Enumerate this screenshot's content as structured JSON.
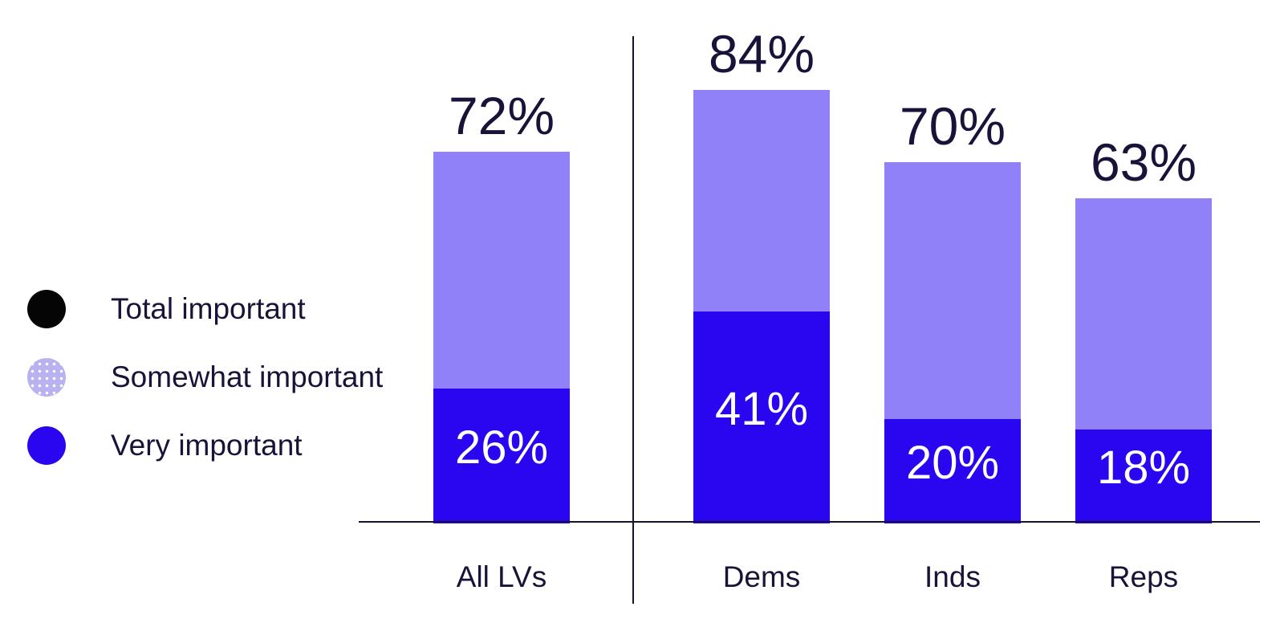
{
  "legend": {
    "items": [
      {
        "label": "Total important",
        "color": "#050505",
        "pattern": "solid"
      },
      {
        "label": "Somewhat important",
        "color": "#b9b2f1",
        "pattern": "dotted"
      },
      {
        "label": "Very important",
        "color": "#2a06f0",
        "pattern": "solid"
      }
    ]
  },
  "chart_data": {
    "type": "bar",
    "stacked": true,
    "unit": "%",
    "title": "",
    "xlabel": "",
    "ylabel": "",
    "categories": [
      "All LVs",
      "Dems",
      "Inds",
      "Reps"
    ],
    "series": [
      {
        "name": "Total important",
        "values": [
          72,
          84,
          70,
          63
        ],
        "labels": [
          "72%",
          "84%",
          "70%",
          "63%"
        ],
        "label_position": "above-bar"
      },
      {
        "name": "Very important",
        "values": [
          26,
          41,
          20,
          18
        ],
        "labels": [
          "26%",
          "41%",
          "20%",
          "18%"
        ],
        "label_position": "inside-bottom-segment"
      }
    ],
    "colors": {
      "somewhat_segment": "#9181f8",
      "very_segment": "#2a06f0",
      "label_above": "#1a1238",
      "label_inside": "#ffffff",
      "axis": "#17132b"
    },
    "ylim": [
      0,
      100
    ],
    "grid": false,
    "axis_baseline": true,
    "divider_between": [
      "All LVs",
      "Dems"
    ],
    "legend_position": "left-middle"
  }
}
